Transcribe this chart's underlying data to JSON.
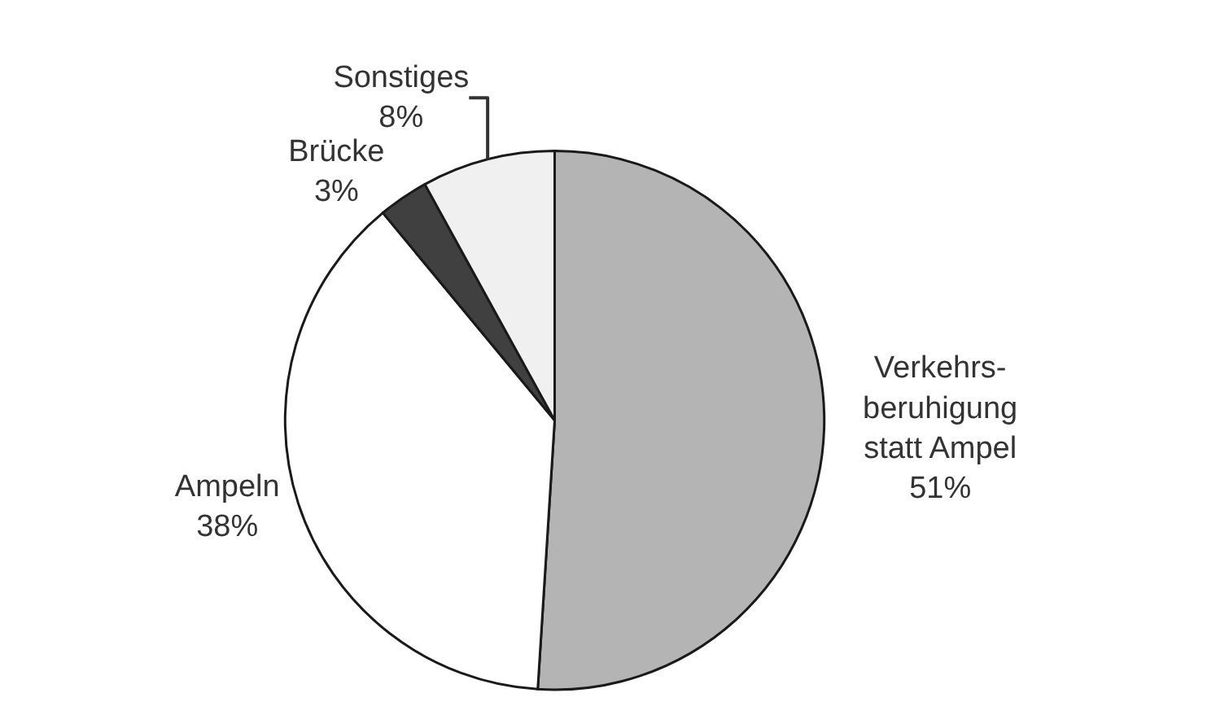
{
  "chart_data": {
    "type": "pie",
    "categories": [
      "Verkehrs-\nberuhigung\nstatt Ampel",
      "Ampeln",
      "Brücke",
      "Sonstiges"
    ],
    "values": [
      51,
      38,
      3,
      8
    ],
    "value_labels": [
      "51%",
      "38%",
      "3%",
      "8%"
    ],
    "colors": [
      "#b4b4b4",
      "#ffffff",
      "#404040",
      "#f0f0f0"
    ],
    "legend": false
  }
}
